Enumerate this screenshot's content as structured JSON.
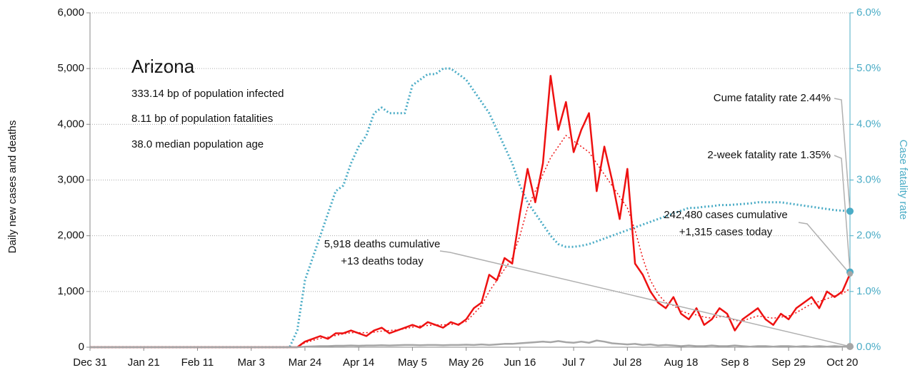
{
  "chart_data": {
    "type": "line",
    "info": {
      "title": "Arizona",
      "lines": [
        "333.14 bp of population infected",
        "8.11 bp of population fatalities",
        "38.0 median population age"
      ]
    },
    "ylabel": "Daily new cases and deaths",
    "y2label": "Case fatality rate",
    "categories": [
      "Dec 31",
      null,
      null,
      null,
      null,
      null,
      null,
      "Jan 21",
      null,
      null,
      null,
      null,
      null,
      null,
      "Feb 11",
      null,
      null,
      null,
      null,
      null,
      null,
      "Mar 3",
      null,
      null,
      null,
      null,
      null,
      null,
      "Mar 24",
      null,
      null,
      null,
      null,
      null,
      null,
      "Apr 14",
      null,
      null,
      null,
      null,
      null,
      null,
      "May 5",
      null,
      null,
      null,
      null,
      null,
      null,
      "May 26",
      null,
      null,
      null,
      null,
      null,
      null,
      "Jun 16",
      null,
      null,
      null,
      null,
      null,
      null,
      "Jul 7",
      null,
      null,
      null,
      null,
      null,
      null,
      "Jul 28",
      null,
      null,
      null,
      null,
      null,
      null,
      "Aug 18",
      null,
      null,
      null,
      null,
      null,
      null,
      "Sep 8",
      null,
      null,
      null,
      null,
      null,
      null,
      "Sep 29",
      null,
      null,
      null,
      null,
      null,
      null,
      "Oct 20",
      null
    ],
    "ylim": [
      0,
      6000
    ],
    "yticks": [
      0,
      {
        "value": 1000,
        "label": "1,000"
      },
      {
        "value": 2000,
        "label": "2,000"
      },
      {
        "value": 3000,
        "label": "3,000"
      },
      {
        "value": 4000,
        "label": "4,000"
      },
      {
        "value": 5000,
        "label": "5,000"
      },
      {
        "value": 6000,
        "label": "6,000"
      }
    ],
    "y2lim": [
      0,
      6
    ],
    "y2ticks": [
      {
        "value": 0,
        "label": "0.0%"
      },
      {
        "value": 1,
        "label": "1.0%"
      },
      {
        "value": 2,
        "label": "2.0%"
      },
      {
        "value": 3,
        "label": "3.0%"
      },
      {
        "value": 4,
        "label": "4.0%"
      },
      {
        "value": 5,
        "label": "5.0%"
      },
      {
        "value": 6,
        "label": "6.0%"
      }
    ],
    "grid": true,
    "series": [
      {
        "color": "#ee1111",
        "style": "solid",
        "values": [
          0,
          0,
          0,
          0,
          0,
          0,
          0,
          0,
          0,
          0,
          0,
          0,
          0,
          0,
          0,
          0,
          0,
          0,
          0,
          0,
          0,
          0,
          0,
          0,
          0,
          0,
          0,
          0,
          100,
          150,
          200,
          150,
          250,
          250,
          300,
          250,
          200,
          300,
          350,
          250,
          300,
          350,
          400,
          350,
          450,
          400,
          350,
          450,
          400,
          500,
          700,
          800,
          1300,
          1200,
          1600,
          1500,
          2400,
          3200,
          2600,
          3300,
          4870,
          3900,
          4400,
          3500,
          3900,
          4200,
          2800,
          3600,
          3000,
          2300,
          3200,
          1500,
          1300,
          1000,
          800,
          700,
          900,
          600,
          500,
          700,
          400,
          500,
          700,
          600,
          300,
          500,
          600,
          700,
          500,
          400,
          600,
          500,
          700,
          800,
          900,
          700,
          1000,
          900,
          1000,
          1315
        ]
      },
      {
        "color": "#ee1111",
        "style": "dotted",
        "values": [
          0,
          0,
          0,
          0,
          0,
          0,
          0,
          0,
          0,
          0,
          0,
          0,
          0,
          0,
          0,
          0,
          0,
          0,
          0,
          0,
          0,
          0,
          0,
          0,
          0,
          0,
          0,
          0,
          80,
          120,
          160,
          180,
          210,
          240,
          260,
          260,
          260,
          270,
          290,
          300,
          310,
          330,
          360,
          380,
          390,
          400,
          400,
          410,
          420,
          460,
          600,
          750,
          1000,
          1200,
          1400,
          1600,
          2000,
          2500,
          2800,
          3100,
          3400,
          3600,
          3800,
          3700,
          3600,
          3500,
          3300,
          3100,
          2900,
          2700,
          2500,
          2100,
          1600,
          1200,
          950,
          800,
          750,
          650,
          600,
          580,
          540,
          520,
          550,
          550,
          480,
          470,
          520,
          560,
          540,
          520,
          540,
          560,
          620,
          700,
          780,
          820,
          870,
          920,
          960,
          1050
        ]
      },
      {
        "color": "#a6a6a6",
        "style": "solid",
        "values": [
          0,
          0,
          0,
          0,
          0,
          0,
          0,
          0,
          0,
          0,
          0,
          0,
          0,
          0,
          0,
          0,
          0,
          0,
          0,
          0,
          0,
          0,
          0,
          0,
          0,
          0,
          0,
          0,
          10,
          15,
          20,
          20,
          25,
          25,
          30,
          25,
          30,
          30,
          35,
          30,
          35,
          40,
          40,
          35,
          40,
          40,
          35,
          40,
          40,
          45,
          40,
          50,
          40,
          50,
          60,
          60,
          70,
          80,
          90,
          100,
          90,
          110,
          90,
          80,
          100,
          80,
          120,
          100,
          70,
          60,
          50,
          60,
          40,
          50,
          30,
          40,
          30,
          20,
          30,
          20,
          20,
          30,
          20,
          20,
          30,
          20,
          10,
          20,
          20,
          10,
          20,
          20,
          10,
          20,
          10,
          20,
          10,
          20,
          10,
          13
        ]
      },
      {
        "color": "#4bacc6",
        "style": "dotted",
        "axis": "y2",
        "values": [
          0,
          0,
          0,
          0,
          0,
          0,
          0,
          0,
          0,
          0,
          0,
          0,
          0,
          0,
          0,
          0,
          0,
          0,
          0,
          0,
          0,
          0,
          0,
          0,
          0,
          0,
          0,
          0.3,
          1.2,
          1.6,
          2.0,
          2.4,
          2.8,
          2.9,
          3.3,
          3.6,
          3.8,
          4.2,
          4.3,
          4.2,
          4.2,
          4.2,
          4.7,
          4.8,
          4.9,
          4.9,
          5.0,
          5.0,
          4.9,
          4.8,
          4.6,
          4.4,
          4.2,
          3.9,
          3.6,
          3.3,
          2.9,
          2.6,
          2.4,
          2.2,
          2.0,
          1.85,
          1.8,
          1.8,
          1.82,
          1.85,
          1.9,
          1.95,
          2.0,
          2.05,
          2.1,
          2.15,
          2.2,
          2.25,
          2.3,
          2.35,
          2.4,
          2.45,
          2.5,
          2.5,
          2.52,
          2.53,
          2.55,
          2.55,
          2.56,
          2.57,
          2.58,
          2.6,
          2.6,
          2.6,
          2.6,
          2.58,
          2.56,
          2.54,
          2.52,
          2.5,
          2.48,
          2.46,
          2.45,
          2.44
        ]
      }
    ],
    "annotations": [
      {
        "text": "Cume fatality rate 2.44%"
      },
      {
        "text": "2-week fatality rate 1.35%",
        "value": 1.35,
        "axis": "y2"
      },
      {
        "lines": [
          "242,480 cases cumulative",
          "+1,315 cases today"
        ]
      },
      {
        "lines": [
          "5,918 deaths cumulative",
          "+13 deaths today"
        ]
      }
    ]
  }
}
